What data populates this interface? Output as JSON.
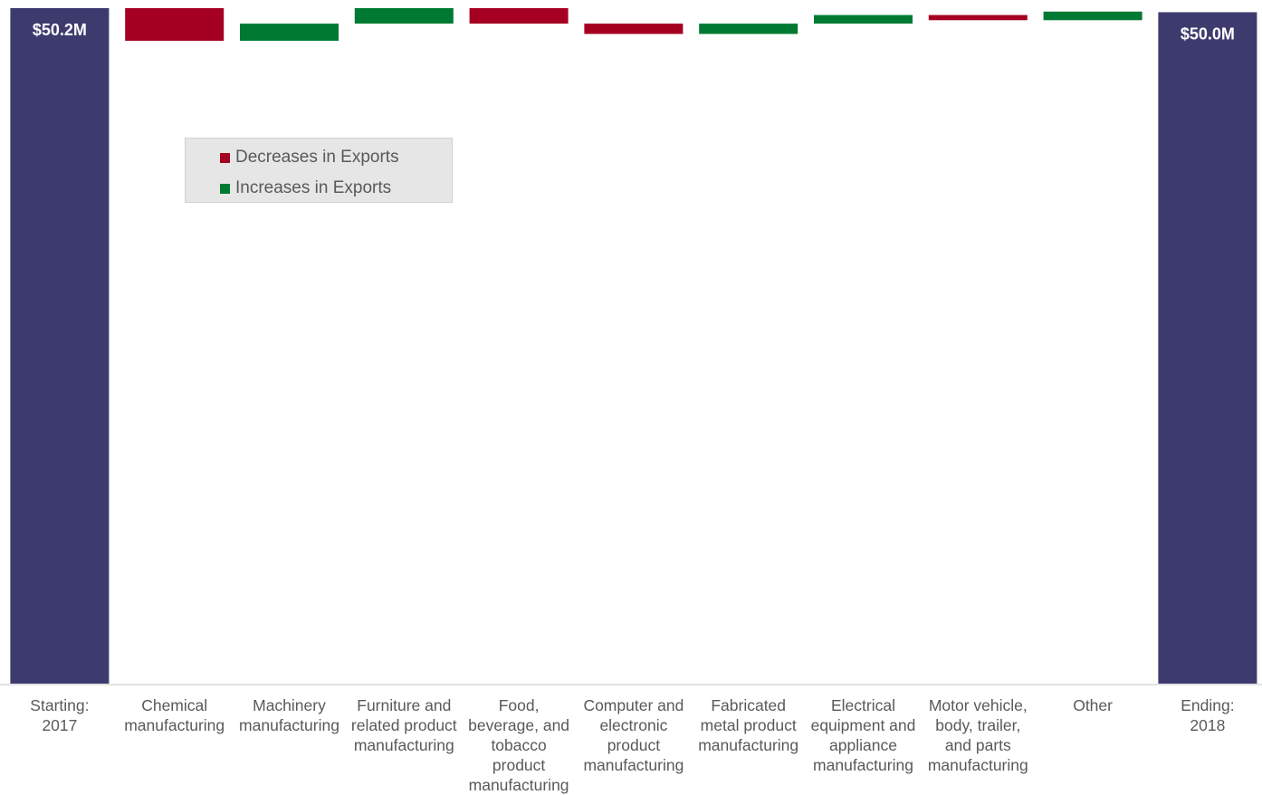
{
  "chart_data": {
    "type": "bar",
    "subtype": "waterfall",
    "categories": [
      "Starting:\n2017",
      "Chemical\nmanufacturing",
      "Machinery\nmanufacturing",
      "Furniture and\nrelated product\nmanufacturing",
      "Food,\nbeverage, and\ntobacco\nproduct\nmanufacturing",
      "Computer and\nelectronic\nproduct\nmanufacturing",
      "Fabricated\nmetal product\nmanufacturing",
      "Electrical\nequipment and\nappliance\nmanufacturing",
      "Motor vehicle,\nbody, trailer,\nand parts\nmanufacturing",
      "Other",
      "Ending:\n2018"
    ],
    "start_value": 50.2,
    "end_value": 50.0,
    "start_label": "$50.2M",
    "end_label": "$50.0M",
    "changes": [
      -0.19,
      0.1,
      0.09,
      -0.09,
      -0.06,
      0.06,
      0.05,
      -0.03,
      0.05
    ],
    "unit": "$M",
    "ylim": [
      0,
      50.2
    ],
    "grid": false,
    "legend_position": "top-left",
    "legend": [
      {
        "label": "Decreases in Exports",
        "color": "#a50021"
      },
      {
        "label": "Increases in Exports",
        "color": "#007a33"
      }
    ],
    "colors": {
      "total": "#3d3b6e",
      "decrease": "#a50021",
      "increase": "#007a33",
      "axis": "#d9d9d9",
      "label": "#595959"
    }
  }
}
